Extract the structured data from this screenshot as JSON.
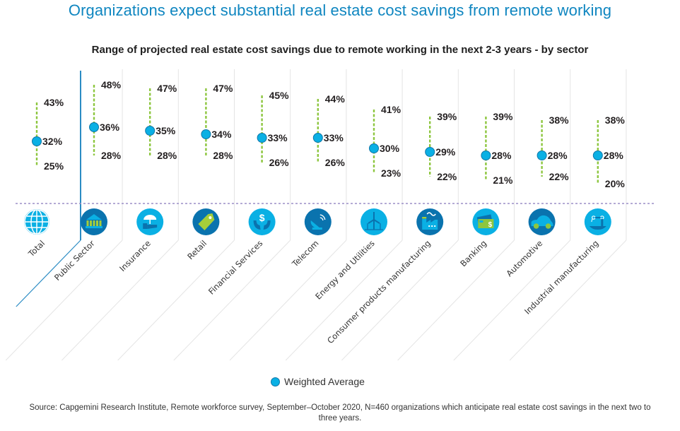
{
  "header": {
    "title": "Organizations expect substantial real estate cost savings from remote working"
  },
  "legend": {
    "label": "Weighted Average"
  },
  "source": "Source: Capgemini Research Institute, Remote workforce survey, September–October 2020, N=460 organizations which anticipate real estate cost savings in the next two to three years.",
  "colors": {
    "title": "#0f86c0",
    "whisker": "#8dc63f",
    "point": "#0ab0e4",
    "point_border": "#1176a8",
    "icon_light": "#0ab0e4",
    "icon_dark": "#0a73ae",
    "separator": "#9b8fc7",
    "total_divider": "#2b8cc4"
  },
  "chart_data": {
    "type": "range",
    "title": "Range of projected real estate cost savings due to remote working in the next 2-3 years - by sector",
    "xlabel": "",
    "ylabel": "",
    "value_unit": "%",
    "legend": [
      "Weighted Average"
    ],
    "legend_position": "bottom",
    "grid": false,
    "categories": [
      "Total",
      "Public Sector",
      "Insurance",
      "Retail",
      "Financial Services",
      "Telecom",
      "Energy and Utilities",
      "Consumer products manufacturing",
      "Banking",
      "Automotive",
      "Industrial manufacturing"
    ],
    "icons": [
      "globe-icon",
      "government-building-icon",
      "umbrella-hand-icon",
      "price-tag-icon",
      "dollar-hands-icon",
      "satellite-dish-icon",
      "wind-turbine-icon",
      "factory-icon",
      "credit-card-icon",
      "car-icon",
      "robot-arm-icon"
    ],
    "icon_tone": [
      "light",
      "dark",
      "light",
      "dark",
      "light",
      "dark",
      "light",
      "dark",
      "light",
      "dark",
      "light"
    ],
    "high": [
      43,
      48,
      47,
      47,
      45,
      44,
      41,
      39,
      39,
      38,
      38
    ],
    "weighted_average": [
      32,
      36,
      35,
      34,
      33,
      33,
      30,
      29,
      28,
      28,
      28
    ],
    "low": [
      25,
      28,
      28,
      28,
      26,
      26,
      23,
      22,
      21,
      22,
      20
    ],
    "ylim": [
      18,
      50
    ]
  }
}
